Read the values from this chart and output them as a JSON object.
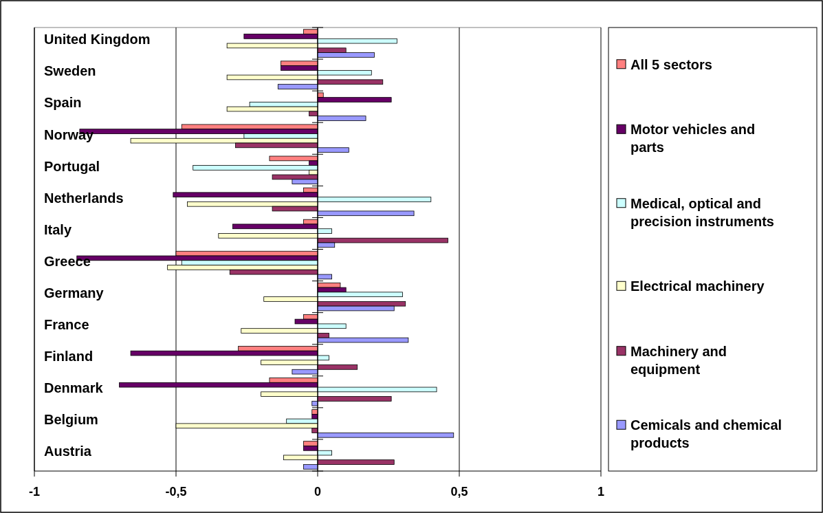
{
  "chart_data": {
    "type": "bar",
    "orientation": "horizontal",
    "categories": [
      "United Kingdom",
      "Sweden",
      "Spain",
      "Norway",
      "Portugal",
      "Netherlands",
      "Italy",
      "Greece",
      "Germany",
      "France",
      "Finland",
      "Denmark",
      "Belgium",
      "Austria"
    ],
    "series": [
      {
        "name": "All 5 sectors",
        "color": "#ff8080",
        "values": [
          -0.05,
          -0.13,
          0.02,
          -0.48,
          -0.17,
          -0.05,
          -0.05,
          -0.5,
          0.08,
          -0.05,
          -0.28,
          -0.17,
          -0.02,
          -0.05
        ]
      },
      {
        "name": "Motor vehicles and parts",
        "color": "#660066",
        "values": [
          -0.26,
          -0.13,
          0.26,
          -0.84,
          -0.03,
          -0.51,
          -0.3,
          -0.85,
          0.1,
          -0.08,
          -0.66,
          -0.7,
          -0.02,
          -0.05
        ]
      },
      {
        "name": "Medical, optical and precision instruments",
        "color": "#ccffff",
        "values": [
          0.28,
          0.19,
          -0.24,
          -0.26,
          -0.44,
          0.4,
          0.05,
          -0.48,
          0.3,
          0.1,
          0.04,
          0.42,
          -0.11,
          0.05
        ]
      },
      {
        "name": "Electrical machinery",
        "color": "#ffffcc",
        "values": [
          -0.32,
          -0.32,
          -0.32,
          -0.66,
          -0.03,
          -0.46,
          -0.35,
          -0.53,
          -0.19,
          -0.27,
          -0.2,
          -0.2,
          -0.5,
          -0.12
        ]
      },
      {
        "name": "Machinery and equipment",
        "color": "#993366",
        "values": [
          0.1,
          0.23,
          -0.03,
          -0.29,
          -0.16,
          -0.16,
          0.46,
          -0.31,
          0.31,
          0.04,
          0.14,
          0.26,
          -0.02,
          0.27
        ]
      },
      {
        "name": "Cemicals and chemical products",
        "color": "#9999ff",
        "values": [
          0.2,
          -0.14,
          0.17,
          0.11,
          -0.09,
          0.34,
          0.06,
          0.05,
          0.27,
          0.32,
          -0.09,
          -0.02,
          0.48,
          -0.05
        ]
      }
    ],
    "xlim": [
      -1,
      1
    ],
    "xticks": [
      {
        "value": -1,
        "label": "-1"
      },
      {
        "value": -0.5,
        "label": "-0,5"
      },
      0,
      {
        "value": 0.5,
        "label": "0,5"
      },
      1
    ],
    "grid": "x",
    "legend": "right"
  }
}
